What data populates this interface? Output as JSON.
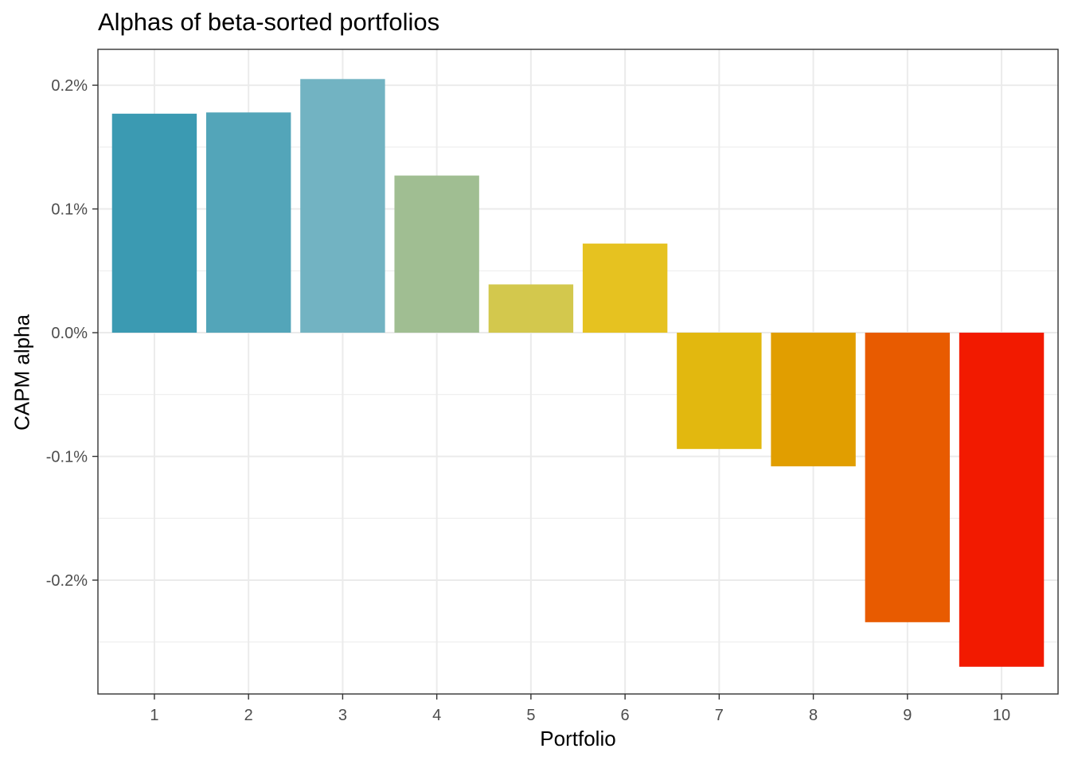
{
  "chart_data": {
    "type": "bar",
    "title": "Alphas of beta-sorted portfolios",
    "xlabel": "Portfolio",
    "ylabel": "CAPM alpha",
    "categories": [
      "1",
      "2",
      "3",
      "4",
      "5",
      "6",
      "7",
      "8",
      "9",
      "10"
    ],
    "values": [
      0.177,
      0.178,
      0.205,
      0.127,
      0.039,
      0.072,
      -0.094,
      -0.108,
      -0.234,
      -0.27
    ],
    "value_unit": "%",
    "colors": [
      "#3B9AB2",
      "#53A5B9",
      "#72B3C2",
      "#A0BE92",
      "#D3C84D",
      "#E6C220",
      "#E2B80F",
      "#E19E00",
      "#E85B00",
      "#F21A00"
    ],
    "ylim": [
      -0.292,
      0.229
    ],
    "yticks": [
      {
        "value": 0.2,
        "label": "0.2%"
      },
      {
        "value": 0.1,
        "label": "0.1%"
      },
      {
        "value": 0.0,
        "label": "0.0%"
      },
      {
        "value": -0.1,
        "label": "-0.1%"
      },
      {
        "value": -0.2,
        "label": "-0.2%"
      }
    ],
    "grid": true,
    "legend": "none"
  }
}
